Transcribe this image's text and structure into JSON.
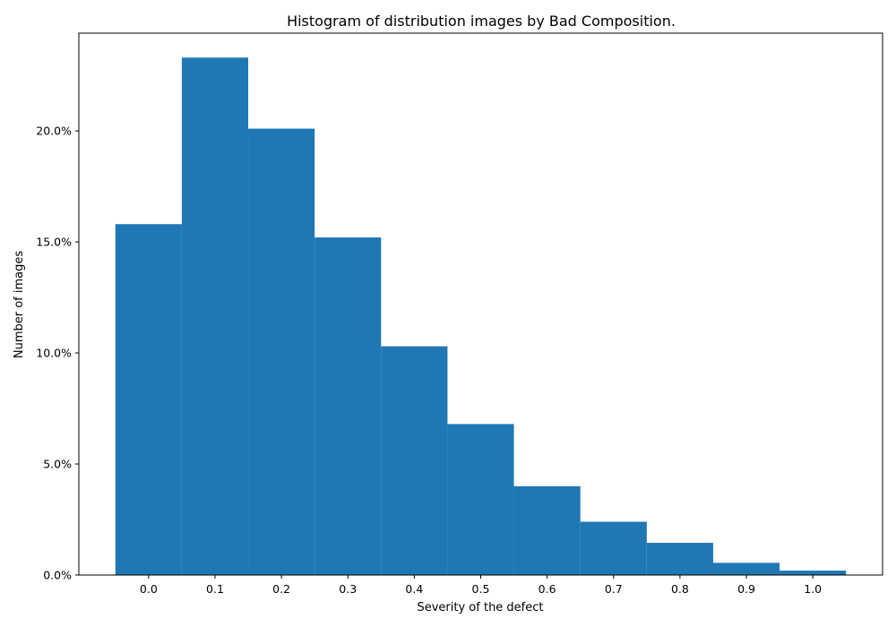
{
  "chart_data": {
    "type": "bar",
    "title": "Histogram of distribution images by Bad Composition.",
    "xlabel": "Severity of the defect",
    "ylabel": "Number of images",
    "categories": [
      "0.0",
      "0.1",
      "0.2",
      "0.3",
      "0.4",
      "0.5",
      "0.6",
      "0.7",
      "0.8",
      "0.9",
      "1.0"
    ],
    "values": [
      15.8,
      23.3,
      20.1,
      15.2,
      10.3,
      6.8,
      4.0,
      2.4,
      1.45,
      0.55,
      0.2
    ],
    "value_unit": "%",
    "xlim": [
      -0.105,
      1.105
    ],
    "ylim": [
      0,
      24.4
    ],
    "yticks": [
      "0.0%",
      "5.0%",
      "10.0%",
      "15.0%",
      "20.0%"
    ],
    "bar_color": "#1f77b4",
    "grid": false
  }
}
